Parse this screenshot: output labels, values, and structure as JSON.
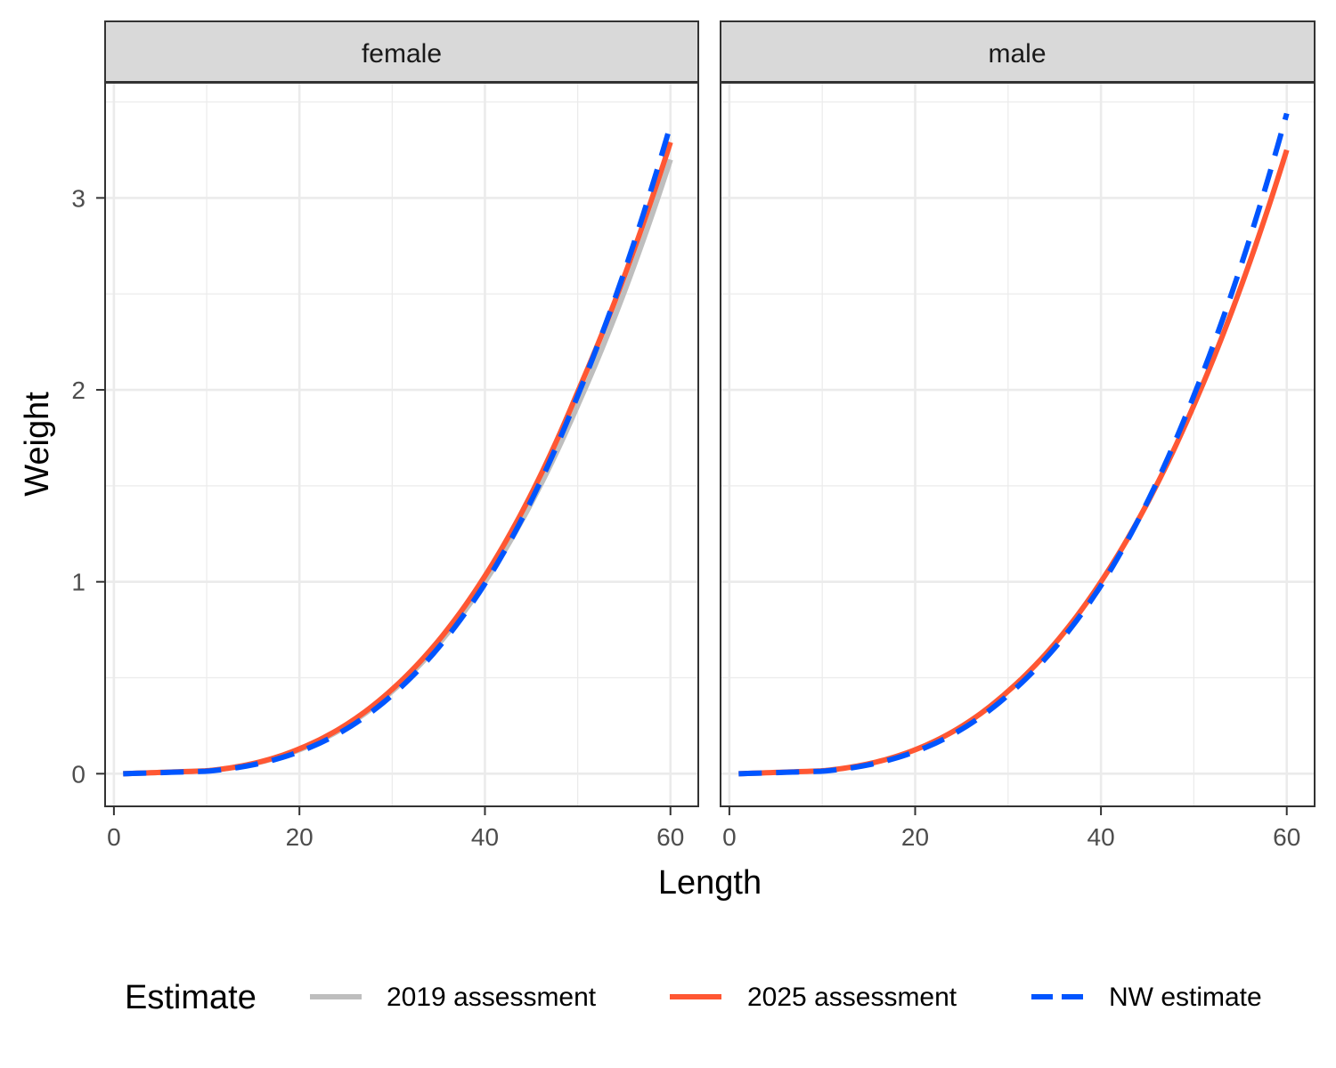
{
  "chart_data": {
    "type": "line",
    "xlabel": "Length",
    "ylabel": "Weight",
    "xlim": [
      -0.95,
      63.0
    ],
    "ylim": [
      -0.17,
      3.6
    ],
    "x_ticks": [
      0,
      20,
      40,
      60
    ],
    "y_ticks": [
      0,
      1,
      2,
      3
    ],
    "x_tick_labels": [
      "0",
      "20",
      "40",
      "60"
    ],
    "y_tick_labels": [
      "0",
      "1",
      "2",
      "3"
    ],
    "grid": true,
    "legend": {
      "title": "Estimate",
      "position": "bottom",
      "entries": [
        {
          "label": "2019 assessment",
          "color": "#bebebe",
          "dash": "solid"
        },
        {
          "label": "2025 assessment",
          "color": "#ff5733",
          "dash": "solid"
        },
        {
          "label": "NW estimate",
          "color": "#0055ff",
          "dash": "dashed"
        }
      ]
    },
    "panels": [
      {
        "label": "female",
        "series": [
          {
            "name": "2019 assessment",
            "color": "#bebebe",
            "dash": "solid",
            "x": [
              1,
              10,
              20,
              30,
              40,
              50,
              60
            ],
            "y": [
              0.0,
              0.015,
              0.125,
              0.43,
              1.0,
              1.92,
              3.2
            ]
          },
          {
            "name": "2025 assessment",
            "color": "#ff5733",
            "dash": "solid",
            "x": [
              1,
              10,
              20,
              30,
              40,
              50,
              60
            ],
            "y": [
              0.0,
              0.015,
              0.13,
              0.44,
              1.03,
              1.99,
              3.29
            ]
          },
          {
            "name": "NW estimate",
            "color": "#0055ff",
            "dash": "dashed",
            "x": [
              1,
              10,
              20,
              30,
              40,
              50,
              60
            ],
            "y": [
              0.0,
              0.013,
              0.115,
              0.41,
              0.99,
              1.97,
              3.38
            ]
          }
        ]
      },
      {
        "label": "male",
        "series": [
          {
            "name": "2025 assessment",
            "color": "#ff5733",
            "dash": "solid",
            "x": [
              1,
              10,
              20,
              30,
              40,
              50,
              60
            ],
            "y": [
              0.0,
              0.015,
              0.125,
              0.43,
              1.0,
              1.92,
              3.25
            ]
          },
          {
            "name": "NW estimate",
            "color": "#0055ff",
            "dash": "dashed",
            "x": [
              1,
              10,
              20,
              30,
              40,
              50,
              60
            ],
            "y": [
              0.0,
              0.013,
              0.115,
              0.41,
              0.98,
              1.97,
              3.44
            ]
          }
        ]
      }
    ]
  }
}
